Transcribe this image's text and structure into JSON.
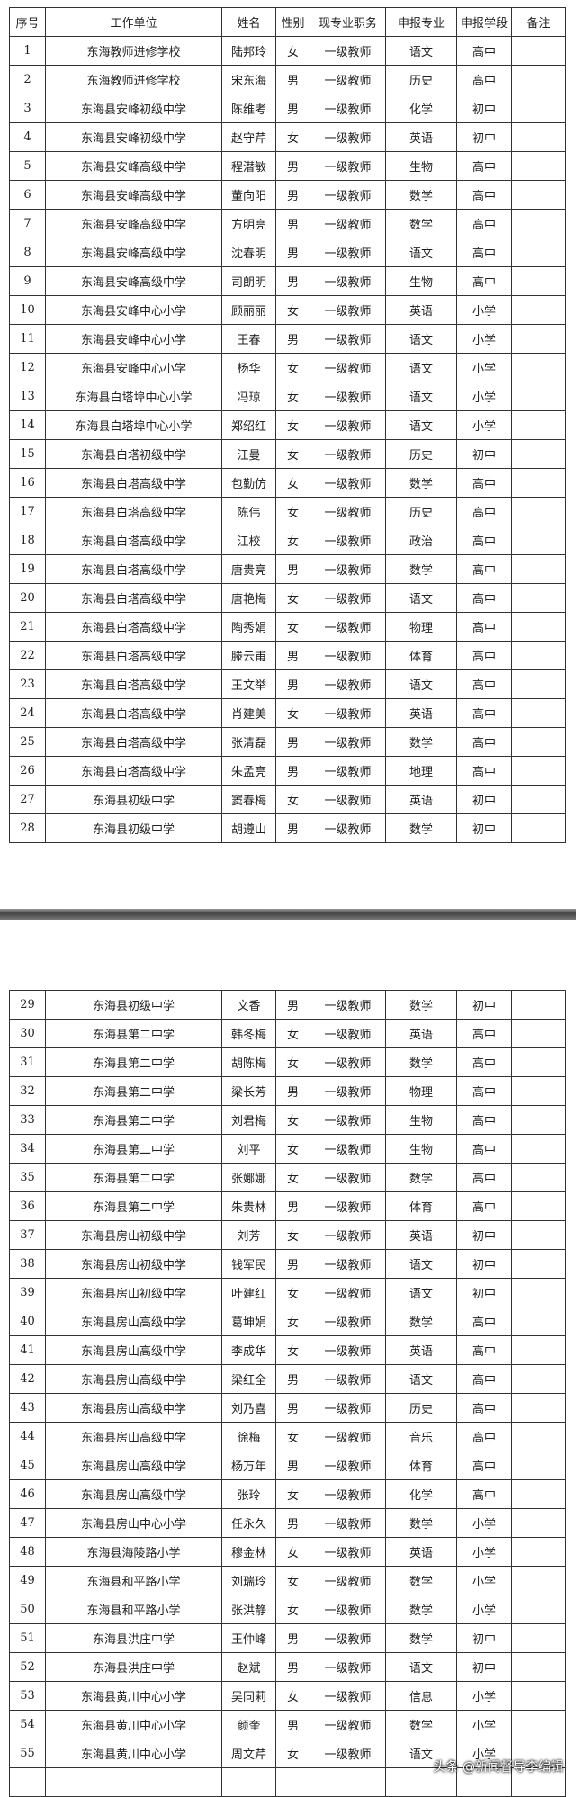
{
  "tables": [
    {
      "header": [
        "序号",
        "工作单位",
        "姓名",
        "性别",
        "现专业职务",
        "申报专业",
        "申报学段",
        "备注"
      ],
      "rows": [
        [
          "1",
          "东海教师进修学校",
          "陆邦玲",
          "女",
          "一级教师",
          "语文",
          "高中"
        ],
        [
          "2",
          "东海教师进修学校",
          "宋东海",
          "男",
          "一级教师",
          "历史",
          "高中"
        ],
        [
          "3",
          "东海县安峰初级中学",
          "陈维考",
          "男",
          "一级教师",
          "化学",
          "初中"
        ],
        [
          "4",
          "东海县安峰初级中学",
          "赵守芹",
          "女",
          "一级教师",
          "英语",
          "初中"
        ],
        [
          "5",
          "东海县安峰高级中学",
          "程潜敏",
          "男",
          "一级教师",
          "生物",
          "高中"
        ],
        [
          "6",
          "东海县安峰高级中学",
          "董向阳",
          "男",
          "一级教师",
          "数学",
          "高中"
        ],
        [
          "7",
          "东海县安峰高级中学",
          "方明亮",
          "男",
          "一级教师",
          "数学",
          "高中"
        ],
        [
          "8",
          "东海县安峰高级中学",
          "沈春明",
          "男",
          "一级教师",
          "语文",
          "高中"
        ],
        [
          "9",
          "东海县安峰高级中学",
          "司朗明",
          "男",
          "一级教师",
          "生物",
          "高中"
        ],
        [
          "10",
          "东海县安峰中心小学",
          "顾丽丽",
          "女",
          "一级教师",
          "英语",
          "小学"
        ],
        [
          "11",
          "东海县安峰中心小学",
          "王春",
          "男",
          "一级教师",
          "语文",
          "小学"
        ],
        [
          "12",
          "东海县安峰中心小学",
          "杨华",
          "女",
          "一级教师",
          "语文",
          "小学"
        ],
        [
          "13",
          "东海县白塔埠中心小学",
          "冯琼",
          "女",
          "一级教师",
          "语文",
          "小学"
        ],
        [
          "14",
          "东海县白塔埠中心小学",
          "郑绍红",
          "女",
          "一级教师",
          "语文",
          "小学"
        ],
        [
          "15",
          "东海县白塔初级中学",
          "江曼",
          "女",
          "一级教师",
          "历史",
          "初中"
        ],
        [
          "16",
          "东海县白塔高级中学",
          "包勤仿",
          "女",
          "一级教师",
          "数学",
          "高中"
        ],
        [
          "17",
          "东海县白塔高级中学",
          "陈伟",
          "女",
          "一级教师",
          "历史",
          "高中"
        ],
        [
          "18",
          "东海县白塔高级中学",
          "江校",
          "女",
          "一级教师",
          "政治",
          "高中"
        ],
        [
          "19",
          "东海县白塔高级中学",
          "唐贵亮",
          "男",
          "一级教师",
          "数学",
          "高中"
        ],
        [
          "20",
          "东海县白塔高级中学",
          "唐艳梅",
          "女",
          "一级教师",
          "语文",
          "高中"
        ],
        [
          "21",
          "东海县白塔高级中学",
          "陶秀娟",
          "女",
          "一级教师",
          "物理",
          "高中"
        ],
        [
          "22",
          "东海县白塔高级中学",
          "滕云甫",
          "男",
          "一级教师",
          "体育",
          "高中"
        ],
        [
          "23",
          "东海县白塔高级中学",
          "王文举",
          "男",
          "一级教师",
          "语文",
          "高中"
        ],
        [
          "24",
          "东海县白塔高级中学",
          "肖建美",
          "女",
          "一级教师",
          "英语",
          "高中"
        ],
        [
          "25",
          "东海县白塔高级中学",
          "张清磊",
          "男",
          "一级教师",
          "数学",
          "高中"
        ],
        [
          "26",
          "东海县白塔高级中学",
          "朱孟亮",
          "男",
          "一级教师",
          "地理",
          "高中"
        ],
        [
          "27",
          "东海县初级中学",
          "窦春梅",
          "女",
          "一级教师",
          "英语",
          "初中"
        ],
        [
          "28",
          "东海县初级中学",
          "胡遵山",
          "男",
          "一级教师",
          "数学",
          "初中"
        ]
      ]
    },
    {
      "rows": [
        [
          "29",
          "东海县初级中学",
          "文香",
          "男",
          "一级教师",
          "数学",
          "初中"
        ],
        [
          "30",
          "东海县第二中学",
          "韩冬梅",
          "女",
          "一级教师",
          "英语",
          "高中"
        ],
        [
          "31",
          "东海县第二中学",
          "胡陈梅",
          "女",
          "一级教师",
          "数学",
          "高中"
        ],
        [
          "32",
          "东海县第二中学",
          "梁长芳",
          "男",
          "一级教师",
          "物理",
          "高中"
        ],
        [
          "33",
          "东海县第二中学",
          "刘君梅",
          "女",
          "一级教师",
          "生物",
          "高中"
        ],
        [
          "34",
          "东海县第二中学",
          "刘平",
          "女",
          "一级教师",
          "生物",
          "高中"
        ],
        [
          "35",
          "东海县第二中学",
          "张娜娜",
          "女",
          "一级教师",
          "数学",
          "高中"
        ],
        [
          "36",
          "东海县第二中学",
          "朱贵林",
          "男",
          "一级教师",
          "体育",
          "高中"
        ],
        [
          "37",
          "东海县房山初级中学",
          "刘芳",
          "女",
          "一级教师",
          "英语",
          "初中"
        ],
        [
          "38",
          "东海县房山初级中学",
          "钱军民",
          "男",
          "一级教师",
          "语文",
          "初中"
        ],
        [
          "39",
          "东海县房山初级中学",
          "叶建红",
          "女",
          "一级教师",
          "语文",
          "初中"
        ],
        [
          "40",
          "东海县房山高级中学",
          "葛坤娟",
          "女",
          "一级教师",
          "数学",
          "高中"
        ],
        [
          "41",
          "东海县房山高级中学",
          "李成华",
          "女",
          "一级教师",
          "英语",
          "高中"
        ],
        [
          "42",
          "东海县房山高级中学",
          "梁红全",
          "男",
          "一级教师",
          "语文",
          "高中"
        ],
        [
          "43",
          "东海县房山高级中学",
          "刘乃喜",
          "男",
          "一级教师",
          "历史",
          "高中"
        ],
        [
          "44",
          "东海县房山高级中学",
          "徐梅",
          "女",
          "一级教师",
          "音乐",
          "高中"
        ],
        [
          "45",
          "东海县房山高级中学",
          "杨万年",
          "男",
          "一级教师",
          "体育",
          "高中"
        ],
        [
          "46",
          "东海县房山高级中学",
          "张玲",
          "女",
          "一级教师",
          "化学",
          "高中"
        ],
        [
          "47",
          "东海县房山中心小学",
          "任永久",
          "男",
          "一级教师",
          "数学",
          "小学"
        ],
        [
          "48",
          "东海县海陵路小学",
          "穆金林",
          "女",
          "一级教师",
          "英语",
          "小学"
        ],
        [
          "49",
          "东海县和平路小学",
          "刘瑞玲",
          "女",
          "一级教师",
          "数学",
          "小学"
        ],
        [
          "50",
          "东海县和平路小学",
          "张洪静",
          "女",
          "一级教师",
          "数学",
          "小学"
        ],
        [
          "51",
          "东海县洪庄中学",
          "王仲峰",
          "男",
          "一级教师",
          "数学",
          "初中"
        ],
        [
          "52",
          "东海县洪庄中学",
          "赵斌",
          "男",
          "一级教师",
          "语文",
          "初中"
        ],
        [
          "53",
          "东海县黄川中心小学",
          "吴同莉",
          "女",
          "一级教师",
          "信息",
          "小学"
        ],
        [
          "54",
          "东海县黄川中心小学",
          "颜奎",
          "男",
          "一级教师",
          "数学",
          "小学"
        ],
        [
          "55",
          "东海县黄川中心小学",
          "周文芹",
          "女",
          "一级教师",
          "语文",
          "小学"
        ]
      ]
    }
  ],
  "watermark": "头条 @新闻督导李编辑"
}
